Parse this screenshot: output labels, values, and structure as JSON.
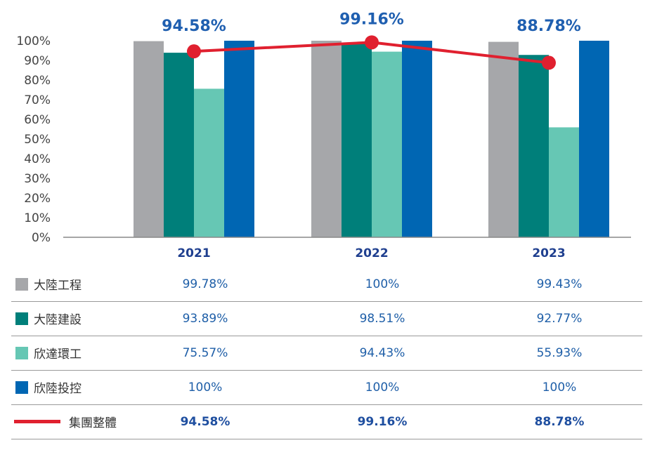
{
  "chart_data": {
    "type": "bar",
    "categories": [
      "2021",
      "2022",
      "2023"
    ],
    "ylim": [
      0,
      100
    ],
    "y_ticks": [
      "0%",
      "10%",
      "20%",
      "30%",
      "40%",
      "50%",
      "60%",
      "70%",
      "80%",
      "90%",
      "100%"
    ],
    "series": [
      {
        "name": "大陸工程",
        "color": "#a6a7aa",
        "values": [
          99.78,
          100,
          99.43
        ],
        "labels": [
          "99.78%",
          "100%",
          "99.43%"
        ]
      },
      {
        "name": "大陸建設",
        "color": "#007f7a",
        "values": [
          93.89,
          98.51,
          92.77
        ],
        "labels": [
          "93.89%",
          "98.51%",
          "92.77%"
        ]
      },
      {
        "name": "欣達環工",
        "color": "#66c7b4",
        "values": [
          75.57,
          94.43,
          55.93
        ],
        "labels": [
          "75.57%",
          "94.43%",
          "55.93%"
        ]
      },
      {
        "name": "欣陸投控",
        "color": "#0066b3",
        "values": [
          100,
          100,
          100
        ],
        "labels": [
          "100%",
          "100%",
          "100%"
        ]
      }
    ],
    "line_series": {
      "name": "集團整體",
      "color": "#e0202f",
      "values": [
        94.58,
        99.16,
        88.78
      ],
      "labels": [
        "94.58%",
        "99.16%",
        "88.78%"
      ]
    },
    "grid": false
  }
}
